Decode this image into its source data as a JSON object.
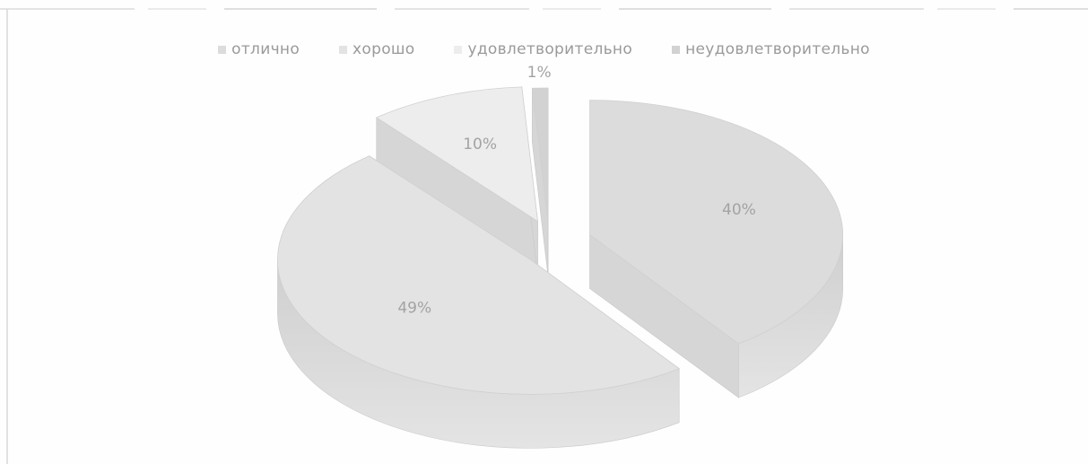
{
  "chart_data": {
    "type": "pie",
    "categories": [
      "отлично",
      "хорошо",
      "удовлетворительно",
      "неудовлетворительно"
    ],
    "values": [
      40,
      49,
      10,
      1
    ],
    "data_labels": [
      "40%",
      "49%",
      "10%",
      "1%"
    ],
    "legend_position": "top",
    "colors": [
      "#dcdcdc",
      "#e3e3e3",
      "#ededed",
      "#d2d2d2"
    ],
    "exploded": true,
    "three_d": true
  }
}
